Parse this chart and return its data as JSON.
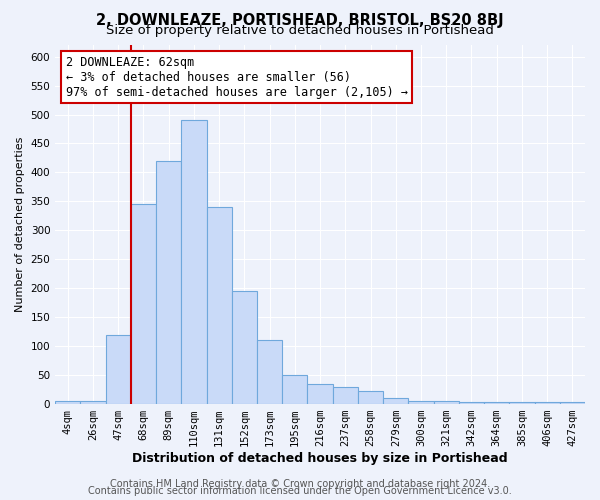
{
  "title": "2, DOWNLEAZE, PORTISHEAD, BRISTOL, BS20 8BJ",
  "subtitle": "Size of property relative to detached houses in Portishead",
  "xlabel": "Distribution of detached houses by size in Portishead",
  "ylabel": "Number of detached properties",
  "bar_labels": [
    "4sqm",
    "26sqm",
    "47sqm",
    "68sqm",
    "89sqm",
    "110sqm",
    "131sqm",
    "152sqm",
    "173sqm",
    "195sqm",
    "216sqm",
    "237sqm",
    "258sqm",
    "279sqm",
    "300sqm",
    "321sqm",
    "342sqm",
    "364sqm",
    "385sqm",
    "406sqm",
    "427sqm"
  ],
  "bar_values": [
    5,
    5,
    120,
    345,
    420,
    490,
    340,
    195,
    110,
    50,
    35,
    30,
    22,
    10,
    5,
    5,
    3,
    3,
    3,
    3,
    3
  ],
  "bar_color": "#c9daf8",
  "bar_edge_color": "#6fa8dc",
  "vline_color": "#cc0000",
  "annotation_line1": "2 DOWNLEAZE: 62sqm",
  "annotation_line2": "← 3% of detached houses are smaller (56)",
  "annotation_line3": "97% of semi-detached houses are larger (2,105) →",
  "annotation_box_color": "#ffffff",
  "annotation_box_edge": "#cc0000",
  "ylim": [
    0,
    620
  ],
  "yticks": [
    0,
    50,
    100,
    150,
    200,
    250,
    300,
    350,
    400,
    450,
    500,
    550,
    600
  ],
  "footer1": "Contains HM Land Registry data © Crown copyright and database right 2024.",
  "footer2": "Contains public sector information licensed under the Open Government Licence v3.0.",
  "background_color": "#eef2fb",
  "grid_color": "#ffffff",
  "title_fontsize": 10.5,
  "subtitle_fontsize": 9.5,
  "xlabel_fontsize": 9,
  "ylabel_fontsize": 8,
  "tick_fontsize": 7.5,
  "annotation_fontsize": 8.5,
  "footer_fontsize": 7
}
